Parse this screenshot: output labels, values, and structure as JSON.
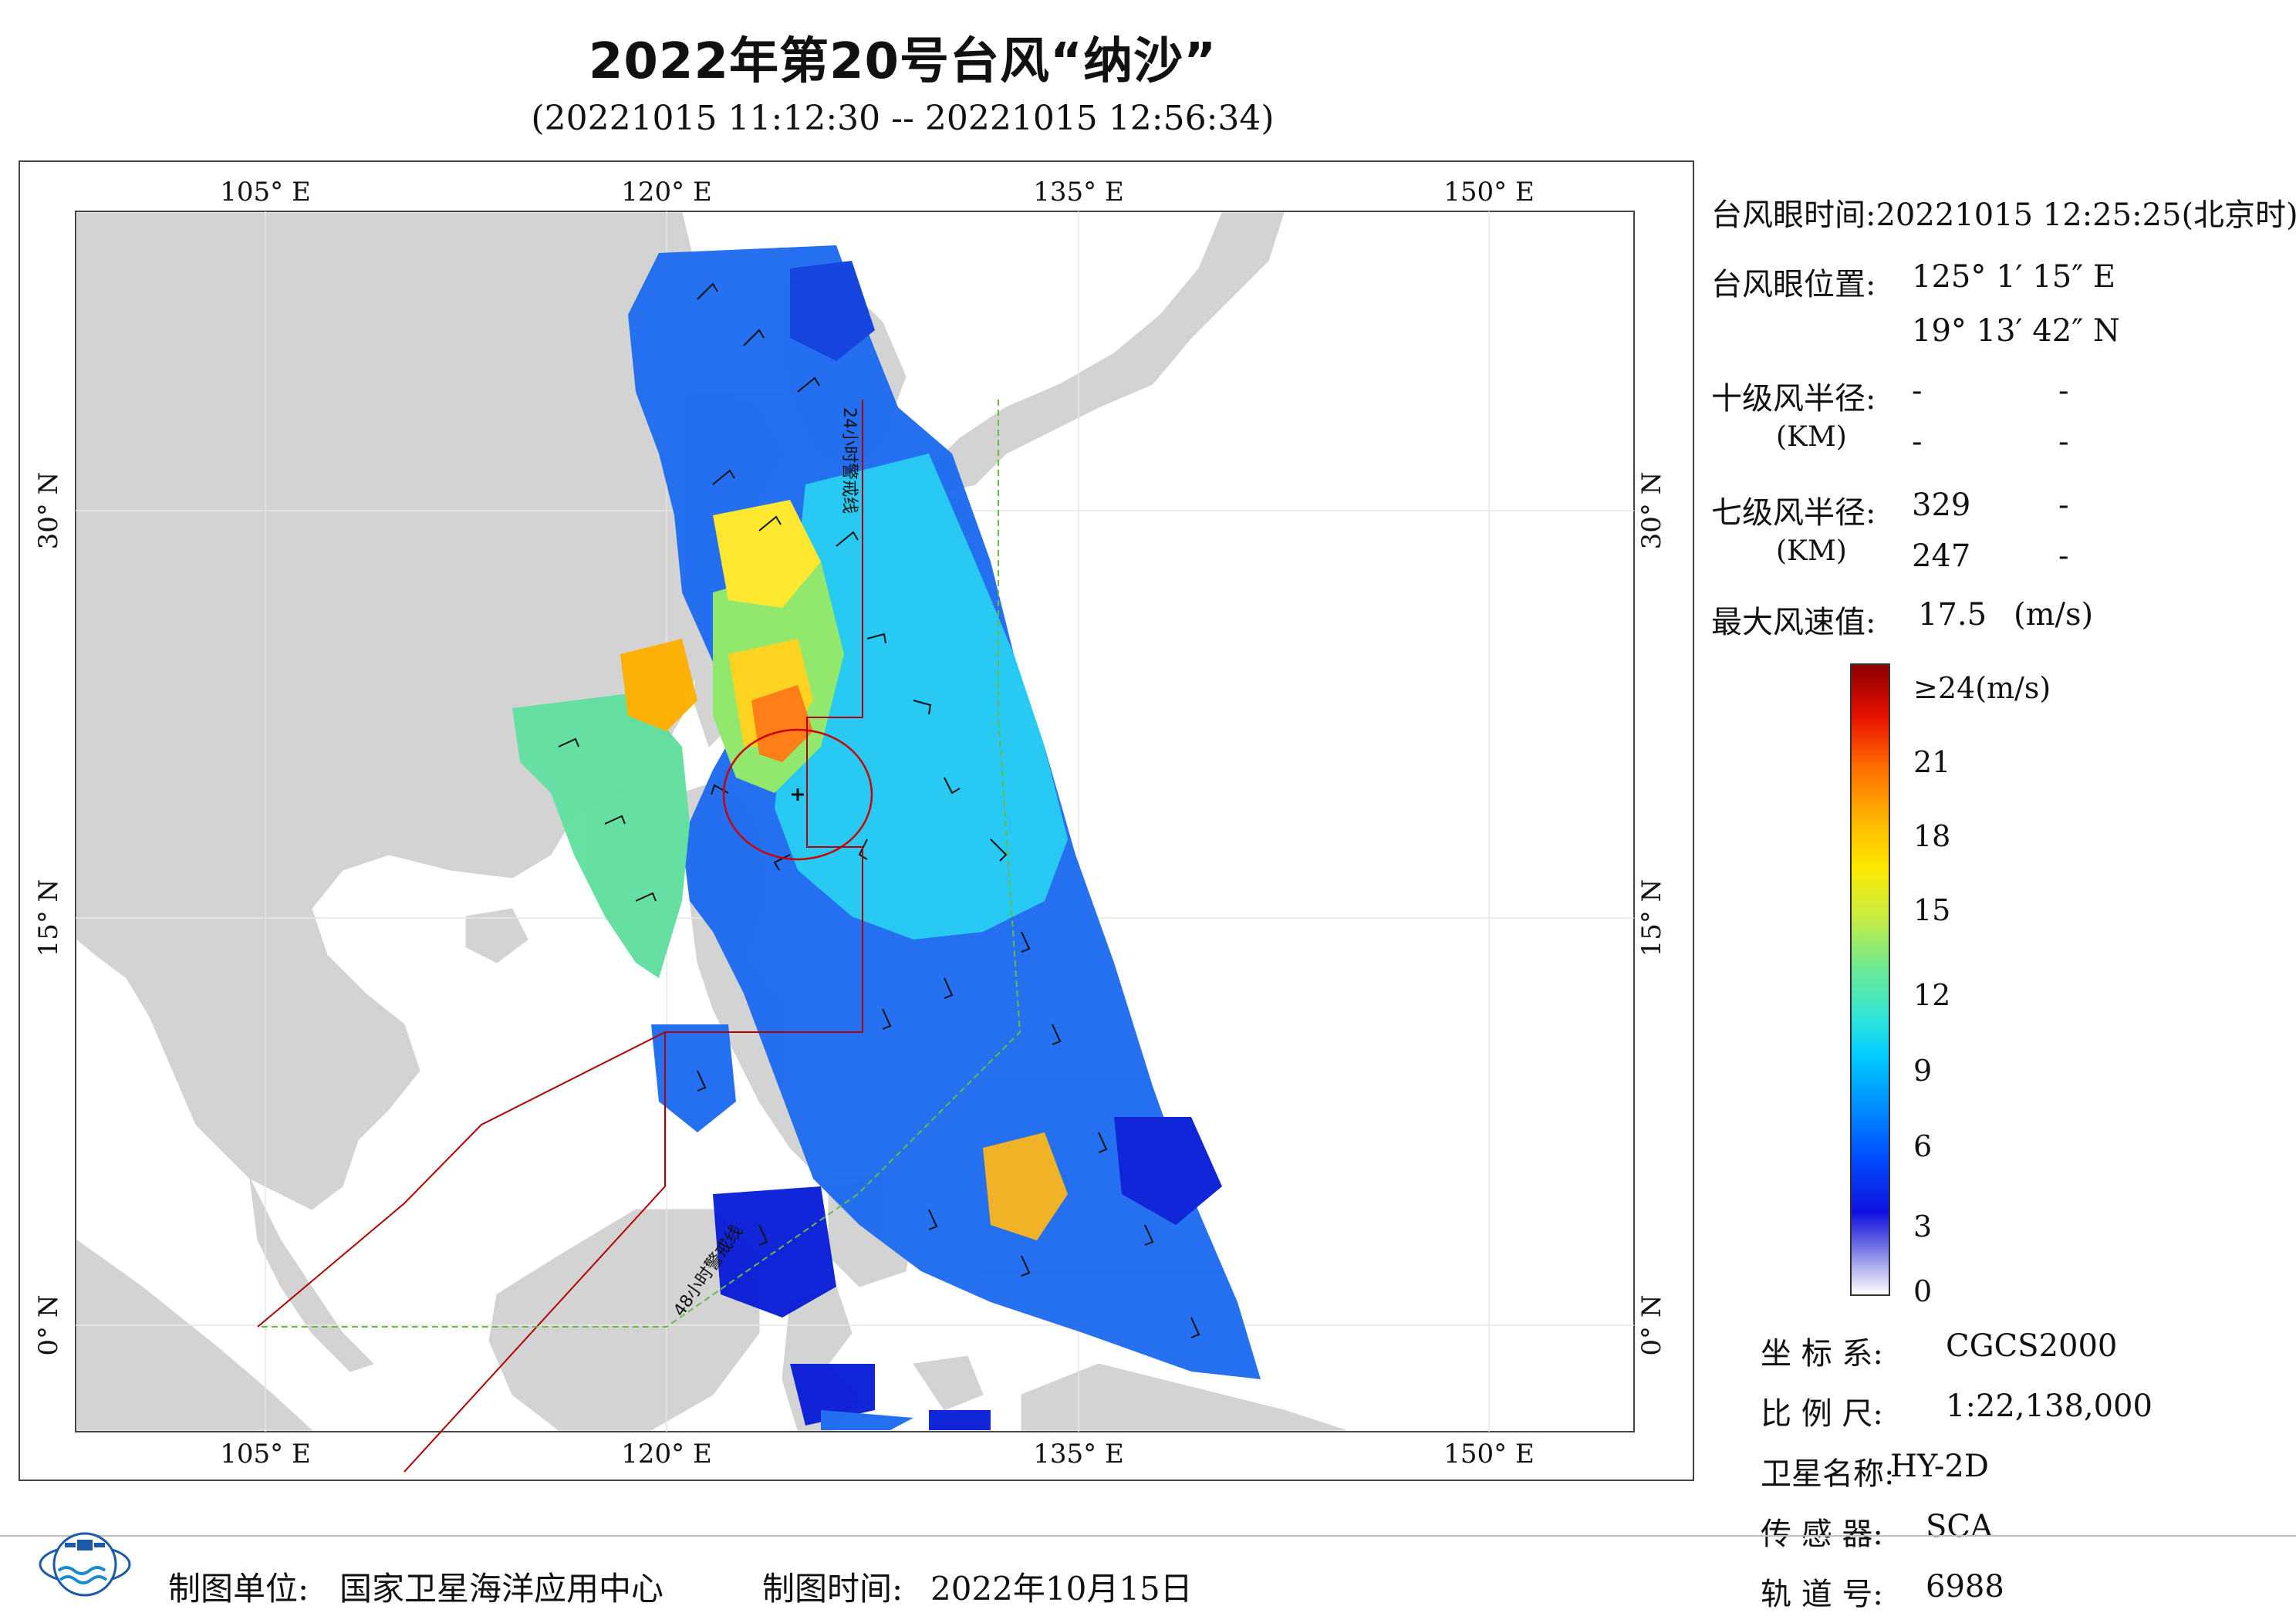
{
  "title": "2022年第20号台风“纳沙”",
  "subtitle": "(20221015 11:12:30 -- 20221015 12:56:34)",
  "map": {
    "top_lon_labels": [
      "105° E",
      "120° E",
      "135° E",
      "150° E"
    ],
    "bottom_lon_labels": [
      "105° E",
      "120° E",
      "135° E",
      "150° E"
    ],
    "left_lat_labels": [
      "30° N",
      "15° N",
      "0° N"
    ],
    "right_lat_labels": [
      "30° N",
      "15° N",
      "0° N"
    ],
    "line_24h": "24小时警戒线",
    "line_48h": "48小时警戒线",
    "colors": {
      "land": "#d3d3d3",
      "sea": "#ffffff",
      "warning_24h": "#b00000",
      "warning_48h": "#66bb44",
      "eye_circle": "#cc0000"
    }
  },
  "info": {
    "eye_time_label": "台风眼时间:",
    "eye_time_value": "20221015 12:25:25(北京时)",
    "eye_pos_label": "台风眼位置:",
    "eye_lon": "125° 1′ 15″ E",
    "eye_lat": "19° 13′ 42″ N",
    "r10_label": "十级风半径:",
    "r10_unit": "(KM)",
    "r10_values": [
      "-",
      "-",
      "-",
      "-"
    ],
    "r7_label": "七级风半径:",
    "r7_unit": "(KM)",
    "r7_values": [
      "329",
      "-",
      "247",
      "-"
    ],
    "max_wind_label": "最大风速值:",
    "max_wind_value": "17.5",
    "max_wind_unit": "(m/s)"
  },
  "legend": {
    "top_label": "≥24(m/s)",
    "ticks": [
      "21",
      "18",
      "15",
      "12",
      "9",
      "6",
      "3",
      "0"
    ]
  },
  "meta": {
    "crs_label": "坐 标 系:",
    "crs_value": "CGCS2000",
    "scale_label": "比 例 尺:",
    "scale_value": "1:22,138,000",
    "satellite_label": "卫星名称:",
    "satellite_value": "HY-2D",
    "sensor_label": "传 感 器:",
    "sensor_value": "SCA",
    "orbit_label": "轨 道 号:",
    "orbit_value": "6988"
  },
  "footer": {
    "unit_label": "制图单位:",
    "unit_value": "国家卫星海洋应用中心",
    "time_label": "制图时间:",
    "time_value": "2022年10月15日"
  }
}
